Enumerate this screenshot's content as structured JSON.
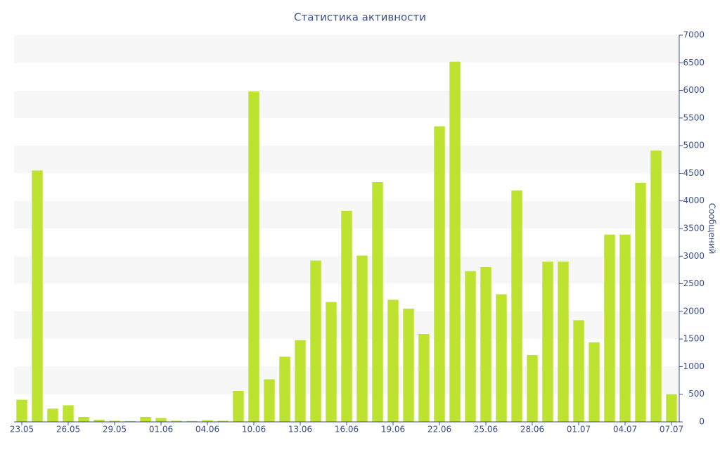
{
  "chart_data": {
    "type": "bar",
    "title": "Статистика активности",
    "y_axis_label": "Сообщений",
    "categories": [
      "23.05",
      null,
      null,
      "26.05",
      null,
      null,
      "29.05",
      null,
      null,
      "01.06",
      null,
      null,
      "04.06",
      null,
      null,
      "10.06",
      null,
      null,
      "13.06",
      null,
      null,
      "16.06",
      null,
      null,
      "19.06",
      null,
      null,
      "22.06",
      null,
      null,
      "25.06",
      null,
      null,
      "28.06",
      null,
      null,
      "01.07",
      null,
      null,
      "04.07",
      null,
      null,
      "07.07"
    ],
    "values": [
      400,
      4550,
      240,
      300,
      90,
      40,
      20,
      15,
      90,
      70,
      20,
      15,
      30,
      20,
      560,
      5980,
      770,
      1180,
      1480,
      2920,
      2170,
      3820,
      3010,
      4340,
      2210,
      2050,
      1590,
      5350,
      6520,
      2730,
      2800,
      2310,
      4190,
      1210,
      2900,
      2900,
      1840,
      1440,
      3390,
      3390,
      4330,
      4910,
      500
    ],
    "color": "#bde22f",
    "ylim": [
      0,
      7000
    ],
    "yticks": [
      0,
      500,
      1000,
      1500,
      2000,
      2500,
      3000,
      3500,
      4000,
      4500,
      5000,
      5500,
      6000,
      6500,
      7000
    ],
    "grid": true,
    "y_axis_side": "right"
  }
}
